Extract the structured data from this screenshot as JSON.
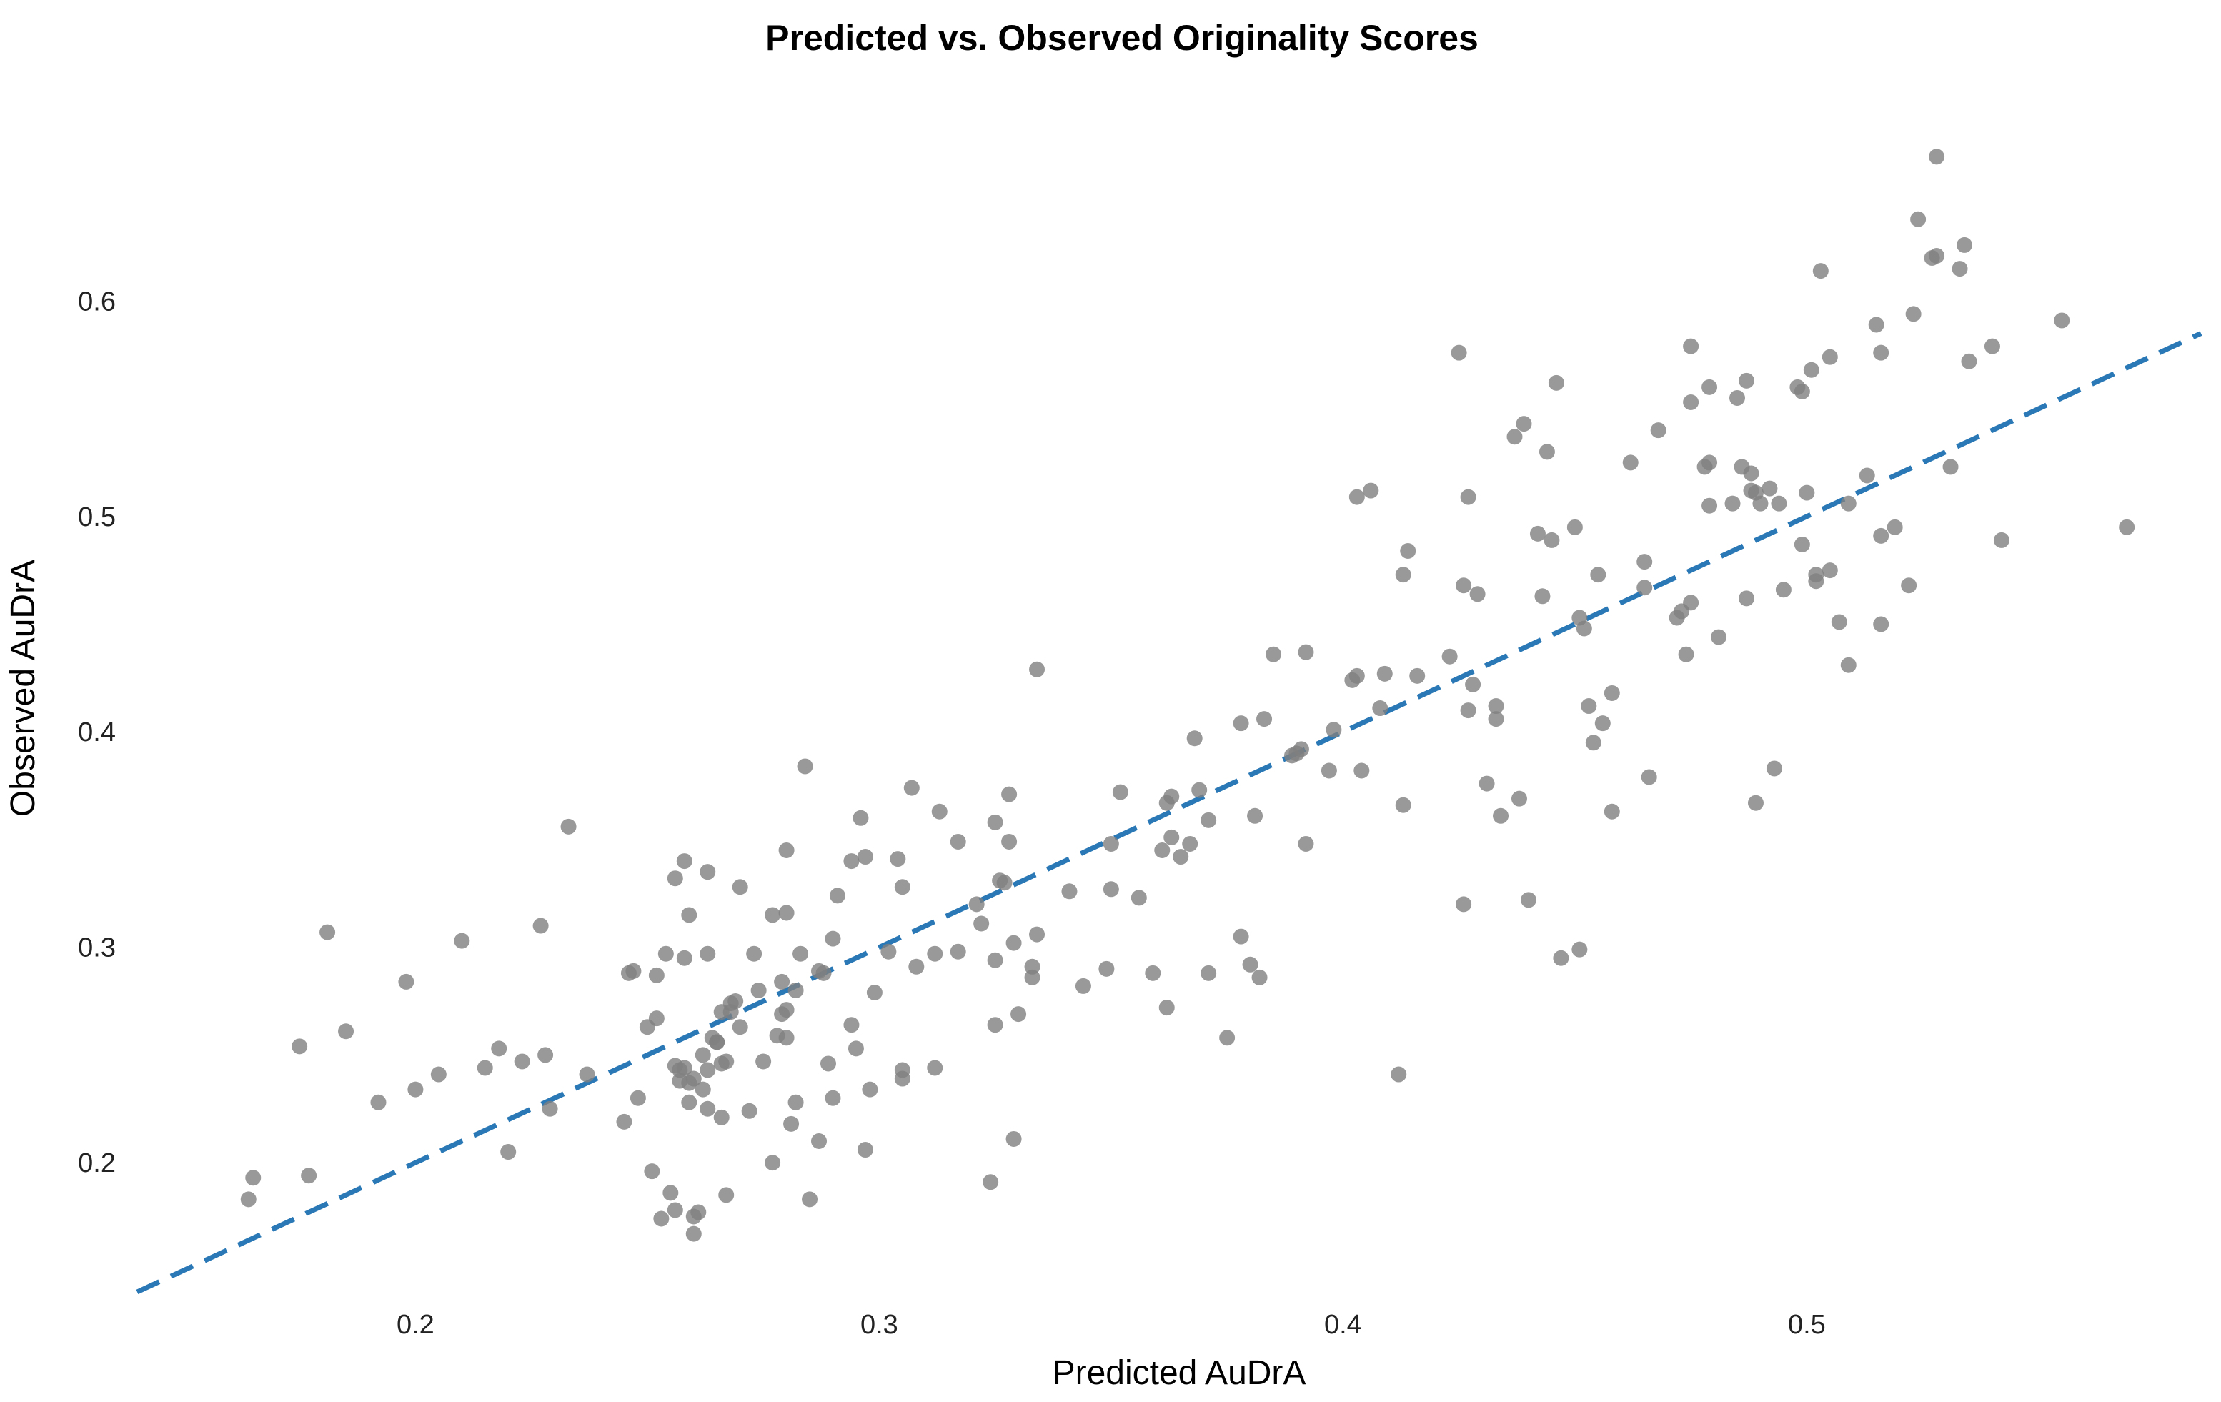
{
  "chart_data": {
    "type": "scatter",
    "title": "Predicted vs. Observed Originality Scores",
    "xlabel": "Predicted AuDrA",
    "ylabel": "Observed AuDrA",
    "xlim": [
      0.14,
      0.585
    ],
    "ylim": [
      0.14,
      0.69
    ],
    "xticks": [
      "0.2",
      "0.3",
      "0.4",
      "0.5"
    ],
    "yticks": [
      "0.2",
      "0.3",
      "0.4",
      "0.5",
      "0.6"
    ],
    "grid": false,
    "legend": "none",
    "point_color": "#7f7f7f",
    "line_color": "#2a78b5",
    "reference_line": {
      "style": "dashed",
      "x": [
        0.14,
        0.585
      ],
      "y": [
        0.14,
        0.585
      ]
    },
    "points": [
      [
        0.164,
        0.183
      ],
      [
        0.165,
        0.193
      ],
      [
        0.175,
        0.254
      ],
      [
        0.177,
        0.194
      ],
      [
        0.181,
        0.307
      ],
      [
        0.185,
        0.261
      ],
      [
        0.192,
        0.228
      ],
      [
        0.198,
        0.284
      ],
      [
        0.2,
        0.234
      ],
      [
        0.205,
        0.241
      ],
      [
        0.21,
        0.303
      ],
      [
        0.215,
        0.244
      ],
      [
        0.218,
        0.253
      ],
      [
        0.22,
        0.205
      ],
      [
        0.223,
        0.247
      ],
      [
        0.227,
        0.31
      ],
      [
        0.228,
        0.25
      ],
      [
        0.229,
        0.225
      ],
      [
        0.233,
        0.356
      ],
      [
        0.237,
        0.241
      ],
      [
        0.245,
        0.219
      ],
      [
        0.246,
        0.288
      ],
      [
        0.247,
        0.289
      ],
      [
        0.248,
        0.23
      ],
      [
        0.25,
        0.263
      ],
      [
        0.251,
        0.196
      ],
      [
        0.252,
        0.267
      ],
      [
        0.252,
        0.287
      ],
      [
        0.253,
        0.174
      ],
      [
        0.254,
        0.297
      ],
      [
        0.255,
        0.186
      ],
      [
        0.256,
        0.245
      ],
      [
        0.256,
        0.178
      ],
      [
        0.256,
        0.332
      ],
      [
        0.257,
        0.238
      ],
      [
        0.257,
        0.243
      ],
      [
        0.258,
        0.34
      ],
      [
        0.258,
        0.244
      ],
      [
        0.258,
        0.295
      ],
      [
        0.259,
        0.228
      ],
      [
        0.259,
        0.315
      ],
      [
        0.259,
        0.237
      ],
      [
        0.26,
        0.239
      ],
      [
        0.26,
        0.167
      ],
      [
        0.26,
        0.175
      ],
      [
        0.261,
        0.177
      ],
      [
        0.262,
        0.234
      ],
      [
        0.262,
        0.25
      ],
      [
        0.263,
        0.297
      ],
      [
        0.263,
        0.335
      ],
      [
        0.263,
        0.225
      ],
      [
        0.263,
        0.243
      ],
      [
        0.264,
        0.258
      ],
      [
        0.265,
        0.256
      ],
      [
        0.265,
        0.256
      ],
      [
        0.266,
        0.246
      ],
      [
        0.266,
        0.221
      ],
      [
        0.266,
        0.27
      ],
      [
        0.267,
        0.185
      ],
      [
        0.267,
        0.247
      ],
      [
        0.268,
        0.274
      ],
      [
        0.268,
        0.27
      ],
      [
        0.269,
        0.275
      ],
      [
        0.27,
        0.328
      ],
      [
        0.27,
        0.263
      ],
      [
        0.272,
        0.224
      ],
      [
        0.273,
        0.297
      ],
      [
        0.274,
        0.28
      ],
      [
        0.275,
        0.247
      ],
      [
        0.277,
        0.2
      ],
      [
        0.277,
        0.315
      ],
      [
        0.278,
        0.259
      ],
      [
        0.279,
        0.284
      ],
      [
        0.279,
        0.269
      ],
      [
        0.28,
        0.345
      ],
      [
        0.28,
        0.316
      ],
      [
        0.28,
        0.258
      ],
      [
        0.28,
        0.271
      ],
      [
        0.281,
        0.218
      ],
      [
        0.282,
        0.228
      ],
      [
        0.282,
        0.28
      ],
      [
        0.283,
        0.297
      ],
      [
        0.284,
        0.384
      ],
      [
        0.285,
        0.183
      ],
      [
        0.287,
        0.289
      ],
      [
        0.287,
        0.21
      ],
      [
        0.288,
        0.288
      ],
      [
        0.289,
        0.246
      ],
      [
        0.29,
        0.304
      ],
      [
        0.29,
        0.23
      ],
      [
        0.291,
        0.324
      ],
      [
        0.294,
        0.34
      ],
      [
        0.294,
        0.264
      ],
      [
        0.295,
        0.253
      ],
      [
        0.296,
        0.36
      ],
      [
        0.297,
        0.206
      ],
      [
        0.297,
        0.342
      ],
      [
        0.298,
        0.234
      ],
      [
        0.299,
        0.279
      ],
      [
        0.302,
        0.298
      ],
      [
        0.304,
        0.341
      ],
      [
        0.305,
        0.243
      ],
      [
        0.305,
        0.239
      ],
      [
        0.305,
        0.328
      ],
      [
        0.307,
        0.374
      ],
      [
        0.308,
        0.291
      ],
      [
        0.312,
        0.244
      ],
      [
        0.312,
        0.297
      ],
      [
        0.313,
        0.363
      ],
      [
        0.317,
        0.349
      ],
      [
        0.317,
        0.298
      ],
      [
        0.321,
        0.32
      ],
      [
        0.322,
        0.311
      ],
      [
        0.324,
        0.191
      ],
      [
        0.325,
        0.358
      ],
      [
        0.325,
        0.294
      ],
      [
        0.325,
        0.264
      ],
      [
        0.326,
        0.331
      ],
      [
        0.327,
        0.33
      ],
      [
        0.328,
        0.349
      ],
      [
        0.328,
        0.371
      ],
      [
        0.329,
        0.302
      ],
      [
        0.329,
        0.211
      ],
      [
        0.33,
        0.269
      ],
      [
        0.333,
        0.286
      ],
      [
        0.333,
        0.291
      ],
      [
        0.334,
        0.306
      ],
      [
        0.334,
        0.429
      ],
      [
        0.341,
        0.326
      ],
      [
        0.344,
        0.282
      ],
      [
        0.349,
        0.29
      ],
      [
        0.35,
        0.327
      ],
      [
        0.35,
        0.348
      ],
      [
        0.352,
        0.372
      ],
      [
        0.356,
        0.323
      ],
      [
        0.359,
        0.288
      ],
      [
        0.361,
        0.345
      ],
      [
        0.362,
        0.272
      ],
      [
        0.362,
        0.367
      ],
      [
        0.363,
        0.37
      ],
      [
        0.363,
        0.351
      ],
      [
        0.365,
        0.342
      ],
      [
        0.367,
        0.348
      ],
      [
        0.368,
        0.397
      ],
      [
        0.369,
        0.373
      ],
      [
        0.371,
        0.359
      ],
      [
        0.371,
        0.288
      ],
      [
        0.375,
        0.258
      ],
      [
        0.378,
        0.404
      ],
      [
        0.378,
        0.305
      ],
      [
        0.38,
        0.292
      ],
      [
        0.381,
        0.361
      ],
      [
        0.382,
        0.286
      ],
      [
        0.383,
        0.406
      ],
      [
        0.385,
        0.436
      ],
      [
        0.389,
        0.389
      ],
      [
        0.39,
        0.39
      ],
      [
        0.391,
        0.392
      ],
      [
        0.392,
        0.348
      ],
      [
        0.392,
        0.437
      ],
      [
        0.397,
        0.382
      ],
      [
        0.398,
        0.401
      ],
      [
        0.402,
        0.424
      ],
      [
        0.403,
        0.426
      ],
      [
        0.403,
        0.509
      ],
      [
        0.404,
        0.382
      ],
      [
        0.406,
        0.512
      ],
      [
        0.408,
        0.411
      ],
      [
        0.409,
        0.427
      ],
      [
        0.412,
        0.241
      ],
      [
        0.413,
        0.366
      ],
      [
        0.413,
        0.473
      ],
      [
        0.414,
        0.484
      ],
      [
        0.416,
        0.426
      ],
      [
        0.423,
        0.435
      ],
      [
        0.425,
        0.576
      ],
      [
        0.426,
        0.468
      ],
      [
        0.426,
        0.32
      ],
      [
        0.427,
        0.41
      ],
      [
        0.427,
        0.509
      ],
      [
        0.428,
        0.422
      ],
      [
        0.429,
        0.464
      ],
      [
        0.431,
        0.376
      ],
      [
        0.433,
        0.412
      ],
      [
        0.433,
        0.406
      ],
      [
        0.434,
        0.361
      ],
      [
        0.437,
        0.537
      ],
      [
        0.438,
        0.369
      ],
      [
        0.439,
        0.543
      ],
      [
        0.44,
        0.322
      ],
      [
        0.442,
        0.492
      ],
      [
        0.443,
        0.463
      ],
      [
        0.444,
        0.53
      ],
      [
        0.445,
        0.489
      ],
      [
        0.446,
        0.562
      ],
      [
        0.447,
        0.295
      ],
      [
        0.45,
        0.495
      ],
      [
        0.451,
        0.453
      ],
      [
        0.451,
        0.299
      ],
      [
        0.452,
        0.448
      ],
      [
        0.453,
        0.412
      ],
      [
        0.454,
        0.395
      ],
      [
        0.455,
        0.473
      ],
      [
        0.456,
        0.404
      ],
      [
        0.458,
        0.418
      ],
      [
        0.458,
        0.363
      ],
      [
        0.462,
        0.525
      ],
      [
        0.465,
        0.479
      ],
      [
        0.465,
        0.467
      ],
      [
        0.466,
        0.379
      ],
      [
        0.468,
        0.54
      ],
      [
        0.472,
        0.453
      ],
      [
        0.473,
        0.456
      ],
      [
        0.474,
        0.436
      ],
      [
        0.475,
        0.46
      ],
      [
        0.475,
        0.579
      ],
      [
        0.475,
        0.553
      ],
      [
        0.478,
        0.523
      ],
      [
        0.479,
        0.505
      ],
      [
        0.479,
        0.525
      ],
      [
        0.479,
        0.56
      ],
      [
        0.481,
        0.444
      ],
      [
        0.484,
        0.506
      ],
      [
        0.485,
        0.555
      ],
      [
        0.486,
        0.523
      ],
      [
        0.487,
        0.563
      ],
      [
        0.487,
        0.462
      ],
      [
        0.488,
        0.512
      ],
      [
        0.488,
        0.52
      ],
      [
        0.489,
        0.511
      ],
      [
        0.489,
        0.367
      ],
      [
        0.49,
        0.506
      ],
      [
        0.492,
        0.513
      ],
      [
        0.493,
        0.383
      ],
      [
        0.494,
        0.506
      ],
      [
        0.495,
        0.466
      ],
      [
        0.498,
        0.56
      ],
      [
        0.499,
        0.558
      ],
      [
        0.499,
        0.487
      ],
      [
        0.5,
        0.511
      ],
      [
        0.501,
        0.568
      ],
      [
        0.502,
        0.47
      ],
      [
        0.502,
        0.473
      ],
      [
        0.503,
        0.614
      ],
      [
        0.505,
        0.475
      ],
      [
        0.505,
        0.574
      ],
      [
        0.507,
        0.451
      ],
      [
        0.509,
        0.431
      ],
      [
        0.509,
        0.506
      ],
      [
        0.513,
        0.519
      ],
      [
        0.515,
        0.589
      ],
      [
        0.516,
        0.576
      ],
      [
        0.516,
        0.45
      ],
      [
        0.516,
        0.491
      ],
      [
        0.519,
        0.495
      ],
      [
        0.522,
        0.468
      ],
      [
        0.523,
        0.594
      ],
      [
        0.524,
        0.638
      ],
      [
        0.527,
        0.62
      ],
      [
        0.528,
        0.621
      ],
      [
        0.528,
        0.667
      ],
      [
        0.531,
        0.523
      ],
      [
        0.533,
        0.615
      ],
      [
        0.534,
        0.626
      ],
      [
        0.535,
        0.572
      ],
      [
        0.54,
        0.579
      ],
      [
        0.542,
        0.489
      ],
      [
        0.555,
        0.591
      ],
      [
        0.569,
        0.495
      ]
    ]
  }
}
